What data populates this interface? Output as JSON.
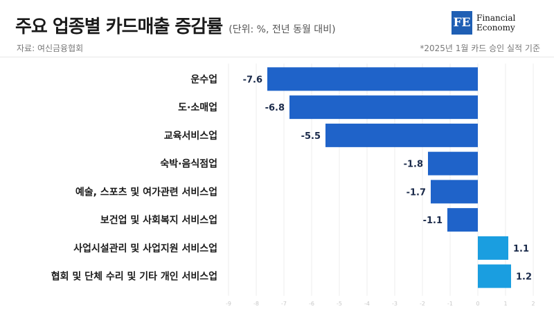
{
  "header": {
    "title": "주요 업종별 카드매출 증감률",
    "unit": "(단위: %, 전년 동월 대비)",
    "source": "자료: 여신금융협회",
    "note": "*2025년 1월 카드 승인 실적 기준"
  },
  "logo": {
    "mark": "FE",
    "line1": "Financial",
    "line2": "Economy"
  },
  "colors": {
    "negative": "#1f63c9",
    "positive": "#1a9ee0",
    "value_text": "#1a2a4a"
  },
  "chart_data": {
    "type": "bar",
    "orientation": "horizontal",
    "title": "주요 업종별 카드매출 증감률",
    "categories": [
      "운수업",
      "도·소매업",
      "교육서비스업",
      "숙박·음식점업",
      "예술, 스포츠 및 여가관련 서비스업",
      "보건업 및 사회복지 서비스업",
      "사업시설관리 및 사업지원 서비스업",
      "협회 및 단체 수리 및 기타 개인 서비스업"
    ],
    "values": [
      -7.6,
      -6.8,
      -5.5,
      -1.8,
      -1.7,
      -1.1,
      1.1,
      1.2
    ],
    "value_labels": [
      "-7.6",
      "-6.8",
      "-5.5",
      "-1.8",
      "-1.7",
      "-1.1",
      "1.1",
      "1.2"
    ],
    "xlim": [
      -9,
      2
    ],
    "xticks": [
      -9,
      -8,
      -7,
      -6,
      -5,
      -4,
      -3,
      -2,
      -1,
      0,
      1,
      2
    ],
    "xtick_labels": [
      "-9",
      "-8",
      "-7",
      "-6",
      "-5",
      "-4",
      "-3",
      "-2",
      "-1",
      "0",
      "1",
      "2"
    ],
    "grid": true,
    "legend": "none"
  }
}
